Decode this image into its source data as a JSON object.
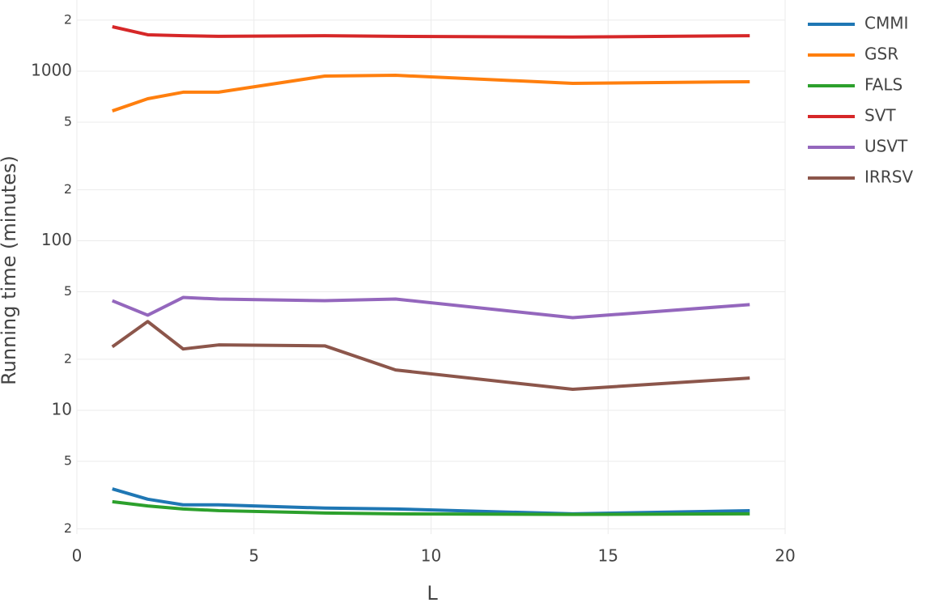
{
  "chart_data": {
    "type": "line",
    "x_label": "L",
    "y_label": "Running time (minutes)",
    "x": [
      1,
      2,
      3,
      4,
      7,
      9,
      14,
      19
    ],
    "series": [
      {
        "name": "CMMI",
        "color": "#1f77b4",
        "values": [
          3.44,
          2.99,
          2.77,
          2.77,
          2.65,
          2.62,
          2.45,
          2.56
        ]
      },
      {
        "name": "GSR",
        "color": "#ff7f0e",
        "values": [
          583,
          688,
          752,
          752,
          936,
          946,
          848,
          867
        ]
      },
      {
        "name": "FALS",
        "color": "#2ca02c",
        "values": [
          2.89,
          2.73,
          2.62,
          2.56,
          2.48,
          2.45,
          2.43,
          2.45
        ]
      },
      {
        "name": "SVT",
        "color": "#d62728",
        "values": [
          1830,
          1640,
          1620,
          1605,
          1620,
          1605,
          1590,
          1620
        ]
      },
      {
        "name": "USVT",
        "color": "#9467bd",
        "values": [
          44.3,
          36.4,
          46.3,
          45.3,
          44.3,
          45.3,
          35.2,
          42.0
        ]
      },
      {
        "name": "IRRSV",
        "color": "#8c564b",
        "values": [
          23.7,
          33.4,
          23.0,
          24.3,
          24.0,
          17.3,
          13.3,
          15.5
        ]
      }
    ],
    "xlim": [
      0,
      20
    ],
    "xticks": [
      0,
      5,
      10,
      15,
      20
    ],
    "ylim": [
      1.86,
      2630
    ],
    "log_y": true,
    "yticks": [
      2,
      5,
      10,
      {
        "value": 20,
        "label": "2"
      },
      {
        "value": 50,
        "label": "5"
      },
      100,
      {
        "value": 200,
        "label": "2"
      },
      {
        "value": 500,
        "label": "5"
      },
      1000,
      {
        "value": 2000,
        "label": "2"
      }
    ],
    "grid": true,
    "legend": "right"
  }
}
